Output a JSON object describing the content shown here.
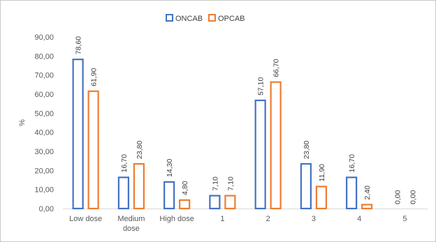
{
  "chart_data": {
    "type": "bar",
    "title": "",
    "xlabel": "",
    "ylabel": "%",
    "ylim": [
      0,
      90
    ],
    "ytick_step": 10,
    "ytick_labels": [
      "0,00",
      "10,00",
      "20,00",
      "30,00",
      "40,00",
      "50,00",
      "60,00",
      "70,00",
      "80,00",
      "90,00"
    ],
    "grid": false,
    "legend_position": "top-center",
    "categories": [
      [
        "Low dose"
      ],
      [
        "Medium",
        "dose"
      ],
      [
        "High dose"
      ],
      [
        "1"
      ],
      [
        "2"
      ],
      [
        "3"
      ],
      [
        "4"
      ],
      [
        "5"
      ]
    ],
    "series": [
      {
        "name": "ONCAB",
        "color": "#4472C4",
        "values": [
          78.6,
          16.7,
          14.3,
          7.1,
          57.1,
          23.8,
          16.7,
          0.0
        ],
        "labels": [
          "78,60",
          "16,70",
          "14,30",
          "7,10",
          "57,10",
          "23,80",
          "16,70",
          "0,00"
        ]
      },
      {
        "name": "OPCAB",
        "color": "#ED7D31",
        "values": [
          61.9,
          23.8,
          4.8,
          7.1,
          66.7,
          11.9,
          2.4,
          0.0
        ],
        "labels": [
          "61,90",
          "23,80",
          "4,80",
          "7,10",
          "66,70",
          "11,90",
          "2,40",
          "0,00"
        ]
      }
    ]
  }
}
